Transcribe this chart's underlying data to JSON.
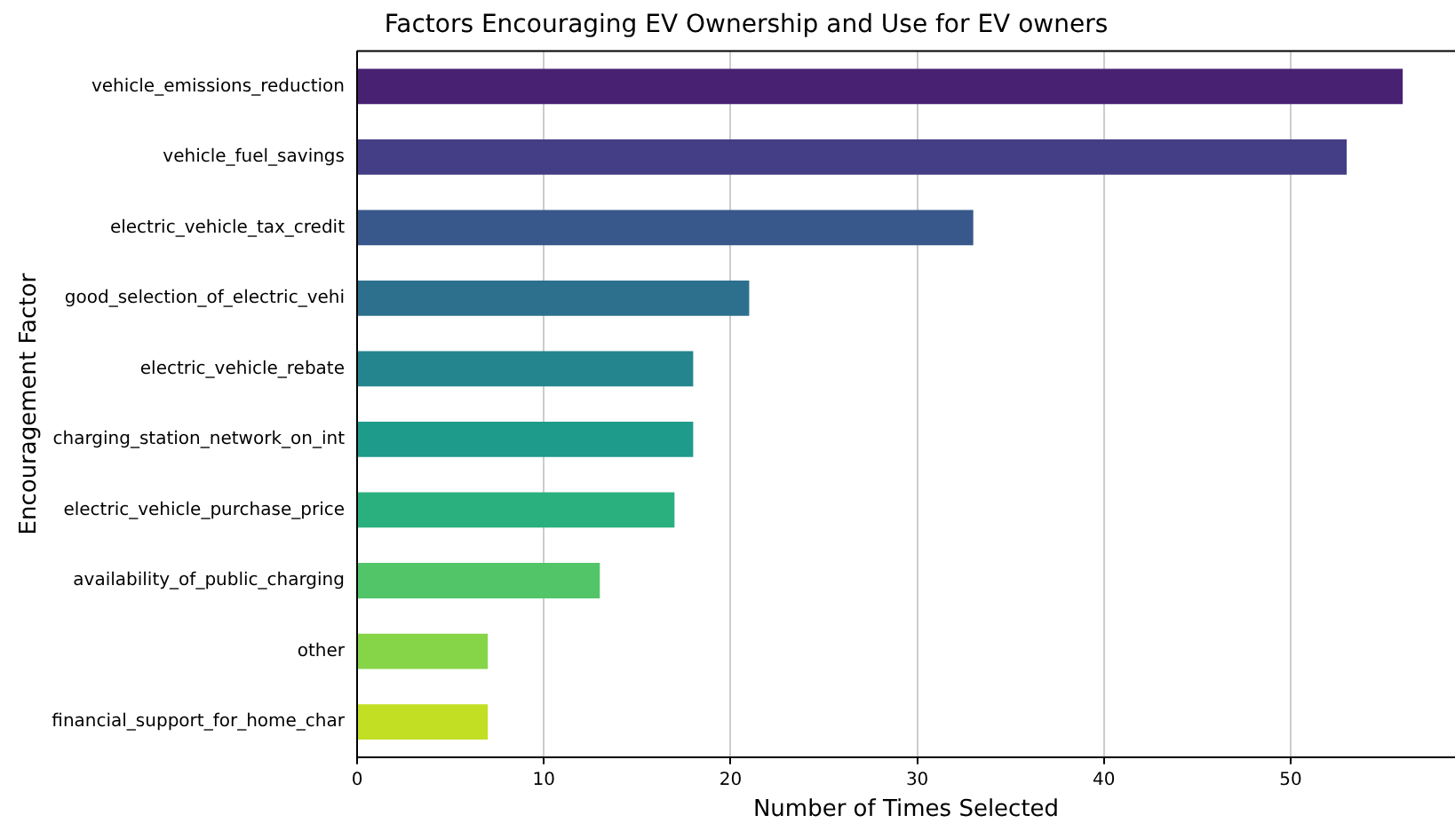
{
  "chart_data": {
    "type": "bar",
    "orientation": "horizontal",
    "title": "Factors Encouraging EV Ownership and Use for EV owners",
    "xlabel": "Number of Times Selected",
    "ylabel": "Encouragement Factor",
    "categories": [
      "vehicle_emissions_reduction",
      "vehicle_fuel_savings",
      "electric_vehicle_tax_credit",
      "good_selection_of_electric_vehi",
      "electric_vehicle_rebate",
      "charging_station_network_on_int",
      "electric_vehicle_purchase_price",
      "availability_of_public_charging",
      "other",
      "financial_support_for_home_char"
    ],
    "values": [
      56,
      53,
      33,
      21,
      18,
      18,
      17,
      13,
      7,
      7
    ],
    "colors": [
      "#482173",
      "#433e85",
      "#38588c",
      "#2d708e",
      "#25858e",
      "#1e9b8a",
      "#2ab07f",
      "#52c569",
      "#86d549",
      "#c2df23"
    ],
    "xlim": [
      0,
      58.8
    ],
    "xticks": [
      0,
      10,
      20,
      30,
      40,
      50
    ],
    "grid": "x",
    "legend": false
  }
}
